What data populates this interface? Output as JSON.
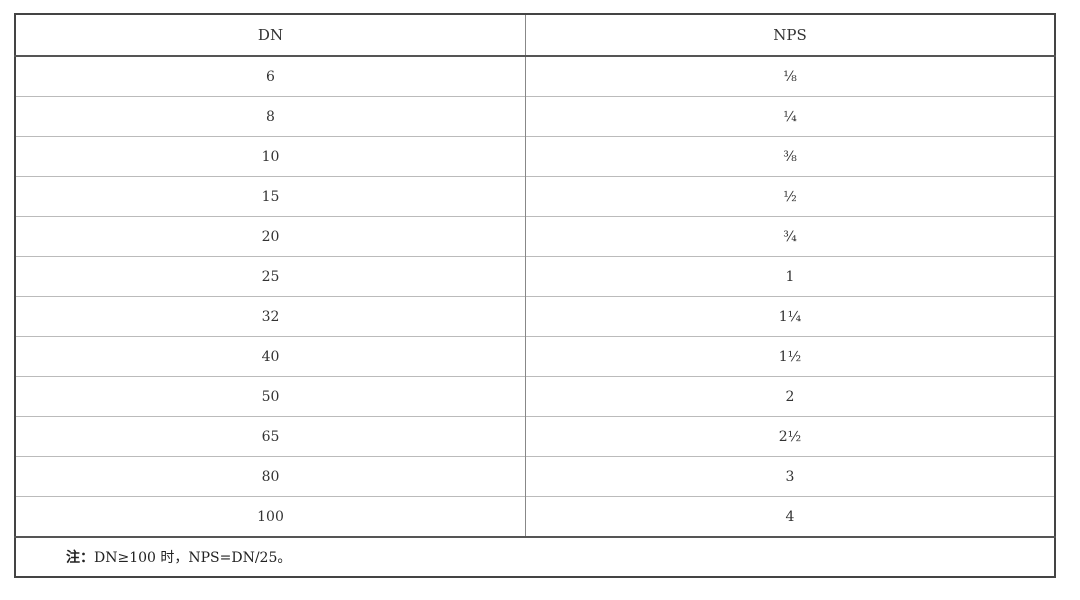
{
  "table": {
    "headers": [
      "DN",
      "NPS"
    ],
    "rows": [
      [
        "6",
        "⅛"
      ],
      [
        "8",
        "¼"
      ],
      [
        "10",
        "⅜"
      ],
      [
        "15",
        "½"
      ],
      [
        "20",
        "¾"
      ],
      [
        "25",
        "1"
      ],
      [
        "32",
        "1¼"
      ],
      [
        "40",
        "1½"
      ],
      [
        "50",
        "2"
      ],
      [
        "65",
        "2½"
      ],
      [
        "80",
        "3"
      ],
      [
        "100",
        "4"
      ]
    ],
    "note_label": "注：",
    "note_text": "DN≥100 时，NPS=DN/25。"
  }
}
